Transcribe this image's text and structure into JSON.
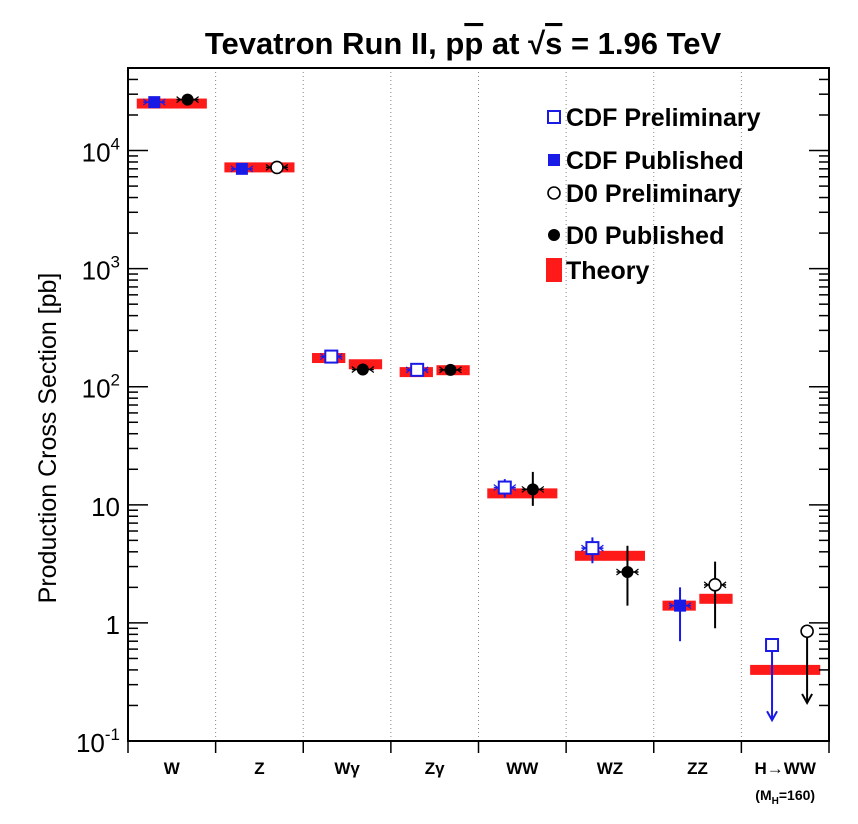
{
  "chart_data": {
    "type": "scatter",
    "title": "Tevatron Run II, pp at √s = 1.96 TeV",
    "title_parts": {
      "pre": "Tevatron Run II, p",
      "pbar": "p",
      "mid": " at ",
      "sqrt": "√",
      "s": "s",
      "post": " = 1.96 TeV"
    },
    "ylabel": "Production Cross Section [pb]",
    "yscale": "log",
    "ylim": [
      0.1,
      50000
    ],
    "yticks": [
      {
        "value": 0.1,
        "base": "10",
        "exp": "-1"
      },
      {
        "value": 1,
        "base": "1",
        "exp": ""
      },
      {
        "value": 10,
        "base": "10",
        "exp": ""
      },
      {
        "value": 100,
        "base": "10",
        "exp": "2"
      },
      {
        "value": 1000,
        "base": "10",
        "exp": "3"
      },
      {
        "value": 10000,
        "base": "10",
        "exp": "4"
      }
    ],
    "categories": [
      {
        "label": "W",
        "sub": ""
      },
      {
        "label": "Z",
        "sub": ""
      },
      {
        "label": "Wγ",
        "sub": ""
      },
      {
        "label": "Zγ",
        "sub": ""
      },
      {
        "label": "WW",
        "sub": ""
      },
      {
        "label": "WZ",
        "sub": ""
      },
      {
        "label": "ZZ",
        "sub": ""
      },
      {
        "label": "H→WW",
        "sub": "(M",
        "sub_h": "H",
        "sub_val": "=160)"
      }
    ],
    "theory": [
      {
        "category": 0,
        "value": 25000,
        "span": [
          0.1,
          0.9
        ]
      },
      {
        "category": 1,
        "value": 7200,
        "span": [
          0.1,
          0.9
        ]
      },
      {
        "category": 2,
        "value": 175,
        "span": [
          0.1,
          0.48
        ]
      },
      {
        "category": 2,
        "value": 155,
        "span": [
          0.52,
          0.9
        ]
      },
      {
        "category": 3,
        "value": 133,
        "span": [
          0.1,
          0.48
        ]
      },
      {
        "category": 3,
        "value": 138,
        "span": [
          0.52,
          0.9
        ]
      },
      {
        "category": 4,
        "value": 12.5,
        "span": [
          0.1,
          0.9
        ]
      },
      {
        "category": 5,
        "value": 3.7,
        "span": [
          0.1,
          0.9
        ]
      },
      {
        "category": 6,
        "value": 1.4,
        "span": [
          0.1,
          0.48
        ]
      },
      {
        "category": 6,
        "value": 1.6,
        "span": [
          0.52,
          0.9
        ]
      },
      {
        "category": 7,
        "value": 0.4,
        "span": [
          0.1,
          0.9
        ]
      }
    ],
    "series": [
      {
        "name": "CDF Preliminary",
        "marker": "open-square",
        "color": "#1a1ae6",
        "points": [
          {
            "category": 2,
            "pos": 0.32,
            "value": 180,
            "lo": 160,
            "hi": 200
          },
          {
            "category": 3,
            "pos": 0.3,
            "value": 139,
            "lo": 130,
            "hi": 150
          },
          {
            "category": 4,
            "pos": 0.3,
            "value": 14,
            "lo": 11.5,
            "hi": 16.5
          },
          {
            "category": 5,
            "pos": 0.3,
            "value": 4.3,
            "lo": 3.2,
            "hi": 5.3
          },
          {
            "category": 7,
            "pos": 0.35,
            "value": 0.65,
            "limit": 0.15
          }
        ]
      },
      {
        "name": "CDF Published",
        "marker": "filled-square",
        "color": "#1a1ae6",
        "points": [
          {
            "category": 0,
            "pos": 0.3,
            "value": 25700,
            "lo": 24000,
            "hi": 27000
          },
          {
            "category": 1,
            "pos": 0.3,
            "value": 7000,
            "lo": 6600,
            "hi": 7400
          },
          {
            "category": 6,
            "pos": 0.3,
            "value": 1.4,
            "lo": 0.7,
            "hi": 2.0
          }
        ]
      },
      {
        "name": "D0 Preliminary",
        "marker": "open-circle",
        "color": "#000000",
        "points": [
          {
            "category": 1,
            "pos": 0.7,
            "value": 7200,
            "lo": 6900,
            "hi": 7500
          },
          {
            "category": 6,
            "pos": 0.7,
            "value": 2.1,
            "lo": 0.9,
            "hi": 3.3
          },
          {
            "category": 7,
            "pos": 0.75,
            "value": 0.85,
            "limit": 0.21
          }
        ]
      },
      {
        "name": "D0 Published",
        "marker": "filled-circle",
        "color": "#000000",
        "points": [
          {
            "category": 0,
            "pos": 0.68,
            "value": 27000,
            "lo": 25500,
            "hi": 28500
          },
          {
            "category": 2,
            "pos": 0.68,
            "value": 140,
            "lo": 125,
            "hi": 155
          },
          {
            "category": 3,
            "pos": 0.68,
            "value": 139,
            "lo": 132,
            "hi": 146
          },
          {
            "category": 4,
            "pos": 0.62,
            "value": 13.5,
            "lo": 9.8,
            "hi": 19
          },
          {
            "category": 5,
            "pos": 0.7,
            "value": 2.7,
            "lo": 1.4,
            "hi": 4.5
          }
        ]
      }
    ],
    "legend": {
      "position": "top-right",
      "items": [
        {
          "label": "CDF Preliminary",
          "marker": "open-square"
        },
        {
          "label": "CDF Published",
          "marker": "filled-square"
        },
        {
          "label": "D0 Preliminary",
          "marker": "open-circle"
        },
        {
          "label": "D0 Published",
          "marker": "filled-circle"
        },
        {
          "label": "Theory",
          "marker": "theory-bar"
        }
      ]
    },
    "colors": {
      "theory": "#ff1a1a",
      "cdf": "#1a1ae6",
      "d0": "#000000",
      "axis": "#000000",
      "separator": "#888888"
    }
  }
}
